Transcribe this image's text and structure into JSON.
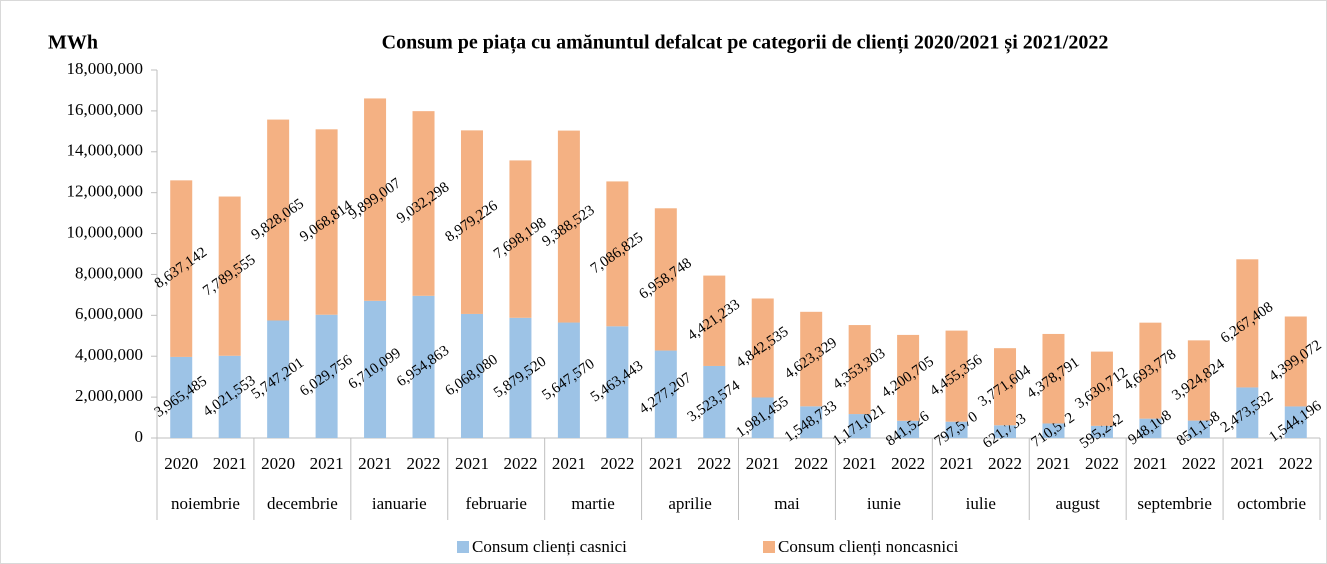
{
  "chart_data": {
    "type": "bar",
    "stacked": true,
    "title": "Consum pe piața cu amănuntul defalcat pe categorii de clienți 2020/2021 și 2021/2022",
    "y_label": "MWh",
    "categories": [
      "2020",
      "2021",
      "2020",
      "2021",
      "2021",
      "2022",
      "2021",
      "2022",
      "2021",
      "2022",
      "2021",
      "2022",
      "2021",
      "2022",
      "2021",
      "2022",
      "2021",
      "2022",
      "2021",
      "2022",
      "2021",
      "2022",
      "2021",
      "2022"
    ],
    "category_groups": [
      "noiembrie",
      "decembrie",
      "ianuarie",
      "februarie",
      "martie",
      "aprilie",
      "mai",
      "iunie",
      "iulie",
      "august",
      "septembrie",
      "octombrie"
    ],
    "series": [
      {
        "name": "Consum clienți casnici",
        "color": "#9dc3e6",
        "values": [
          3965485,
          4021553,
          5747201,
          6029756,
          6710099,
          6954863,
          6068080,
          5879520,
          5647570,
          5463443,
          4277207,
          3523574,
          1981455,
          1548733,
          1171021,
          841526,
          797570,
          621733,
          710572,
          595242,
          948108,
          851158,
          2473532,
          1544196
        ],
        "value_labels": [
          "3,965,485",
          "4,021,553",
          "5,747,201",
          "6,029,756",
          "6,710,099",
          "6,954,863",
          "6,068,080",
          "5,879,520",
          "5,647,570",
          "5,463,443",
          "4,277,207",
          "3,523,574",
          "1,981,455",
          "1,548,733",
          "1,171,021",
          "841,526",
          "797,570",
          "621,733",
          "710,572",
          "595,242",
          "948,108",
          "851,158",
          "2,473,532",
          "1,544,196"
        ]
      },
      {
        "name": "Consum clienți noncasnici",
        "color": "#f4b183",
        "values": [
          8637142,
          7789555,
          9828065,
          9068814,
          9899007,
          9032298,
          8979226,
          7698198,
          9388523,
          7086825,
          6958748,
          4421233,
          4842535,
          4623329,
          4353303,
          4200705,
          4455356,
          3771604,
          4378791,
          3630712,
          4693778,
          3924824,
          6267408,
          4399072
        ],
        "value_labels": [
          "8,637,142",
          "7,789,555",
          "9,828,065",
          "9,068,814",
          "9,899,007",
          "9,032,298",
          "8,979,226",
          "7,698,198",
          "9,388,523",
          "7,086,825",
          "6,958,748",
          "4,421,233",
          "4,842,535",
          "4,623,329",
          "4,353,303",
          "4,200,705",
          "4,455,356",
          "3,771,604",
          "4,378,791",
          "3,630,712",
          "4,693,778",
          "3,924,824",
          "6,267,408",
          "4,399,072"
        ]
      }
    ],
    "ylim": [
      0,
      18000000
    ],
    "yticks": [
      0,
      {
        "value": 2000000,
        "label": "2,000,000"
      },
      {
        "value": 4000000,
        "label": "4,000,000"
      },
      {
        "value": 6000000,
        "label": "6,000,000"
      },
      {
        "value": 8000000,
        "label": "8,000,000"
      },
      {
        "value": 10000000,
        "label": "10,000,000"
      },
      {
        "value": 12000000,
        "label": "12,000,000"
      },
      {
        "value": 14000000,
        "label": "14,000,000"
      },
      {
        "value": 16000000,
        "label": "16,000,000"
      },
      {
        "value": 18000000,
        "label": "18,000,000"
      }
    ],
    "legend": "bottom"
  }
}
